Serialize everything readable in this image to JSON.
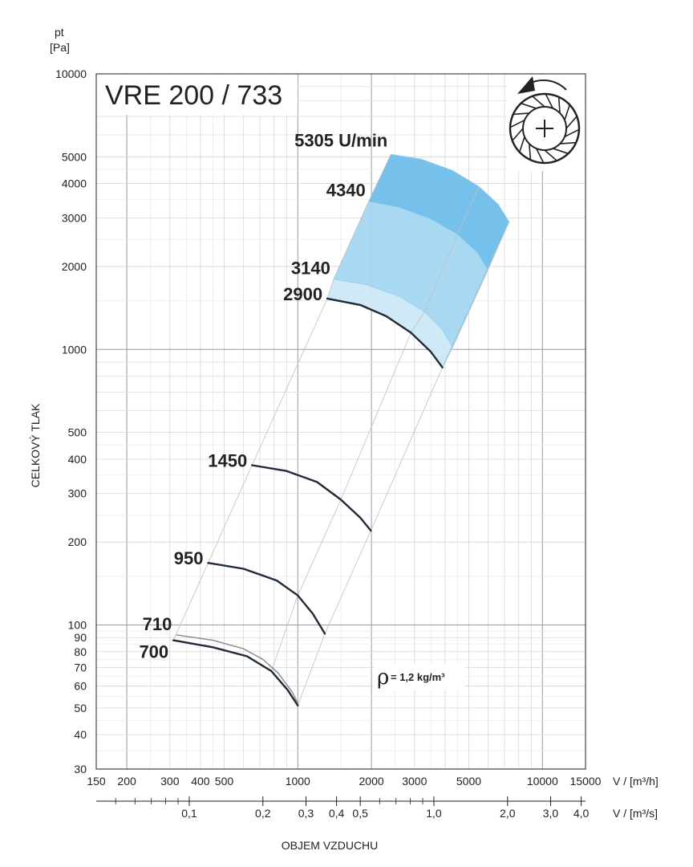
{
  "chart_data": {
    "type": "line",
    "title": "VRE 200 / 733",
    "ylabel_symbol": "pt",
    "ylabel_unit": "[Pa]",
    "ylabel": "CELKOVÝ TLAK",
    "xlabel": "OBJEM VZDUCHU",
    "x_unit_h": "V / [m³/h]",
    "x_unit_s": "V / [m³/s]",
    "y_scale": "log",
    "x_scale": "log",
    "xlim": [
      150,
      15000
    ],
    "ylim": [
      30,
      10000
    ],
    "grid": true,
    "y_ticks": [
      {
        "v": 10000,
        "label": "10000"
      },
      {
        "v": 5000,
        "label": "5000"
      },
      {
        "v": 4000,
        "label": "4000"
      },
      {
        "v": 3000,
        "label": "3000"
      },
      {
        "v": 2000,
        "label": "2000"
      },
      {
        "v": 1000,
        "label": "1000"
      },
      {
        "v": 500,
        "label": "500"
      },
      {
        "v": 400,
        "label": "400"
      },
      {
        "v": 300,
        "label": "300"
      },
      {
        "v": 200,
        "label": "200"
      },
      {
        "v": 100,
        "label": "100"
      },
      {
        "v": 90,
        "label": "90"
      },
      {
        "v": 80,
        "label": "80"
      },
      {
        "v": 70,
        "label": "70"
      },
      {
        "v": 60,
        "label": "60"
      },
      {
        "v": 50,
        "label": "50"
      },
      {
        "v": 40,
        "label": "40"
      },
      {
        "v": 30,
        "label": "30"
      }
    ],
    "x_ticks_h": [
      {
        "v": 150,
        "label": "150"
      },
      {
        "v": 200,
        "label": "200"
      },
      {
        "v": 300,
        "label": "300"
      },
      {
        "v": 400,
        "label": "400"
      },
      {
        "v": 500,
        "label": "500"
      },
      {
        "v": 1000,
        "label": "1000"
      },
      {
        "v": 2000,
        "label": "2000"
      },
      {
        "v": 3000,
        "label": "3000"
      },
      {
        "v": 5000,
        "label": "5000"
      },
      {
        "v": 10000,
        "label": "10000"
      },
      {
        "v": 15000,
        "label": "15000"
      }
    ],
    "x_ticks_s": [
      {
        "v": 0.1,
        "label": "0,1"
      },
      {
        "v": 0.2,
        "label": "0,2"
      },
      {
        "v": 0.3,
        "label": "0,3"
      },
      {
        "v": 0.4,
        "label": "0,4"
      },
      {
        "v": 0.5,
        "label": "0,5"
      },
      {
        "v": 1.0,
        "label": "1,0"
      },
      {
        "v": 2.0,
        "label": "2,0"
      },
      {
        "v": 3.0,
        "label": "3,0"
      },
      {
        "v": 4.0,
        "label": "4,0"
      }
    ],
    "density_label": "= 1,2 kg/m³",
    "density_symbol": "ρ",
    "speed_unit": "U/min",
    "series": [
      {
        "name": "700",
        "x": [
          310,
          450,
          620,
          780,
          910,
          1000
        ],
        "y": [
          88,
          83,
          77,
          68,
          58,
          51
        ]
      },
      {
        "name": "710",
        "x": [
          320,
          450,
          600,
          720,
          830,
          950,
          1000
        ],
        "y": [
          92,
          88,
          82,
          75,
          67,
          57,
          52
        ]
      },
      {
        "name": "950",
        "x": [
          430,
          600,
          820,
          1000,
          1150,
          1290
        ],
        "y": [
          168,
          160,
          145,
          128,
          110,
          93
        ]
      },
      {
        "name": "1450",
        "x": [
          650,
          900,
          1200,
          1500,
          1800,
          1990
        ],
        "y": [
          380,
          362,
          330,
          285,
          245,
          220
        ]
      },
      {
        "name": "2900",
        "x": [
          1320,
          1800,
          2300,
          2900,
          3500,
          3900
        ],
        "y": [
          1530,
          1450,
          1320,
          1150,
          980,
          860
        ]
      }
    ],
    "high_speed_zones": [
      {
        "name": "3140",
        "upper_x": [
          1400,
          1900,
          2600,
          3300,
          3900,
          4300
        ],
        "upper_y": [
          1800,
          1720,
          1560,
          1370,
          1180,
          1020
        ]
      },
      {
        "name": "4340",
        "upper_x": [
          1950,
          2600,
          3500,
          4500,
          5400,
          6000
        ],
        "upper_y": [
          3450,
          3280,
          2980,
          2620,
          2260,
          1950
        ]
      },
      {
        "name": "5305",
        "upper_x": [
          2400,
          3200,
          4300,
          5500,
          6600,
          7300
        ],
        "upper_y": [
          5100,
          4900,
          4450,
          3900,
          3350,
          2900
        ]
      }
    ],
    "zone_colors": {
      "light": "#cde8f7",
      "mid": "#a4d6f2",
      "dark": "#6fbeea",
      "outline": "#88cbe9"
    }
  }
}
